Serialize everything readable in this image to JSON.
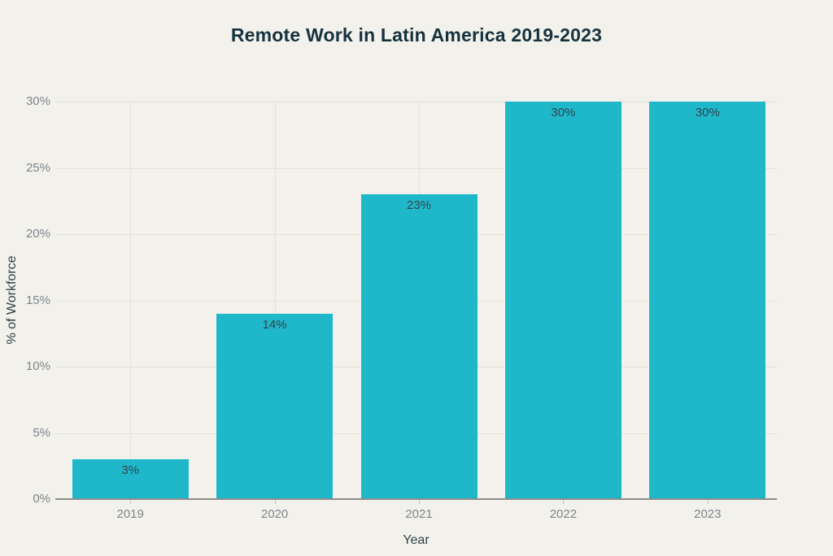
{
  "chart_data": {
    "type": "bar",
    "title": "Remote Work in Latin America 2019-2023",
    "categories": [
      "2019",
      "2020",
      "2021",
      "2022",
      "2023"
    ],
    "values": [
      3,
      14,
      23,
      30,
      30
    ],
    "bar_labels": [
      "3%",
      "14%",
      "23%",
      "30%",
      "30%"
    ],
    "xlabel": "Year",
    "ylabel": "% of Workforce",
    "ylim": [
      0,
      30
    ],
    "yticks": [
      0,
      5,
      10,
      15,
      20,
      25,
      30
    ],
    "ytick_labels": [
      "0%",
      "5%",
      "10%",
      "15%",
      "20%",
      "25%",
      "30%"
    ],
    "grid": true,
    "legend": "none",
    "colors": {
      "bar": "#1fb8cb",
      "background": "#f2f1eb",
      "title_text": "#16323e",
      "tick_text": "#7e868c",
      "label_text": "#33434a",
      "gridline": "#e2e1d9",
      "axis_line": "#8f8e88"
    }
  }
}
